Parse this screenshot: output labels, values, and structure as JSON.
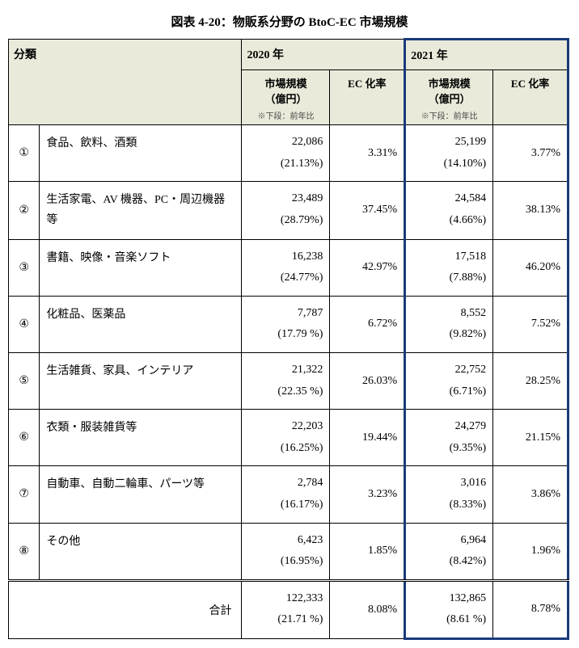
{
  "title": "図表 4-20：物販系分野の BtoC-EC 市場規模",
  "headers": {
    "category": "分類",
    "year2020": "2020 年",
    "year2021": "2021 年",
    "marketSize1": "市場規模",
    "marketSizeUnit": "（億円）",
    "marketSizeNote": "※下段：前年比",
    "ecRate": "EC 化率"
  },
  "rows": [
    {
      "num": "①",
      "cat": "食品、飲料、酒類",
      "v20": "22,086",
      "p20": "(21.13%)",
      "r20": "3.31%",
      "v21": "25,199",
      "p21": "(14.10%)",
      "r21": "3.77%"
    },
    {
      "num": "②",
      "cat": "生活家電、AV 機器、PC・周辺機器等",
      "v20": "23,489",
      "p20": "(28.79%)",
      "r20": "37.45%",
      "v21": "24,584",
      "p21": "(4.66%)",
      "r21": "38.13%"
    },
    {
      "num": "③",
      "cat": "書籍、映像・音楽ソフト",
      "v20": "16,238",
      "p20": "(24.77%)",
      "r20": "42.97%",
      "v21": "17,518",
      "p21": "(7.88%)",
      "r21": "46.20%"
    },
    {
      "num": "④",
      "cat": "化粧品、医薬品",
      "v20": "7,787",
      "p20": "(17.79 %)",
      "r20": "6.72%",
      "v21": "8,552",
      "p21": "(9.82%)",
      "r21": "7.52%"
    },
    {
      "num": "⑤",
      "cat": "生活雑貨、家具、インテリア",
      "v20": "21,322",
      "p20": "(22.35 %)",
      "r20": "26.03%",
      "v21": "22,752",
      "p21": "(6.71%)",
      "r21": "28.25%"
    },
    {
      "num": "⑥",
      "cat": "衣類・服装雑貨等",
      "v20": "22,203",
      "p20": "(16.25%)",
      "r20": "19.44%",
      "v21": "24,279",
      "p21": "(9.35%)",
      "r21": "21.15%"
    },
    {
      "num": "⑦",
      "cat": "自動車、自動二輪車、パーツ等",
      "v20": "2,784",
      "p20": "(16.17%)",
      "r20": "3.23%",
      "v21": "3,016",
      "p21": "(8.33%)",
      "r21": "3.86%"
    },
    {
      "num": "⑧",
      "cat": "その他",
      "v20": "6,423",
      "p20": "(16.95%)",
      "r20": "1.85%",
      "v21": "6,964",
      "p21": "(8.42%)",
      "r21": "1.96%"
    }
  ],
  "total": {
    "label": "合計",
    "v20": "122,333",
    "p20": "(21.71 %)",
    "r20": "8.08%",
    "v21": "132,865",
    "p21": "(8.61 %)",
    "r21": "8.78%"
  }
}
